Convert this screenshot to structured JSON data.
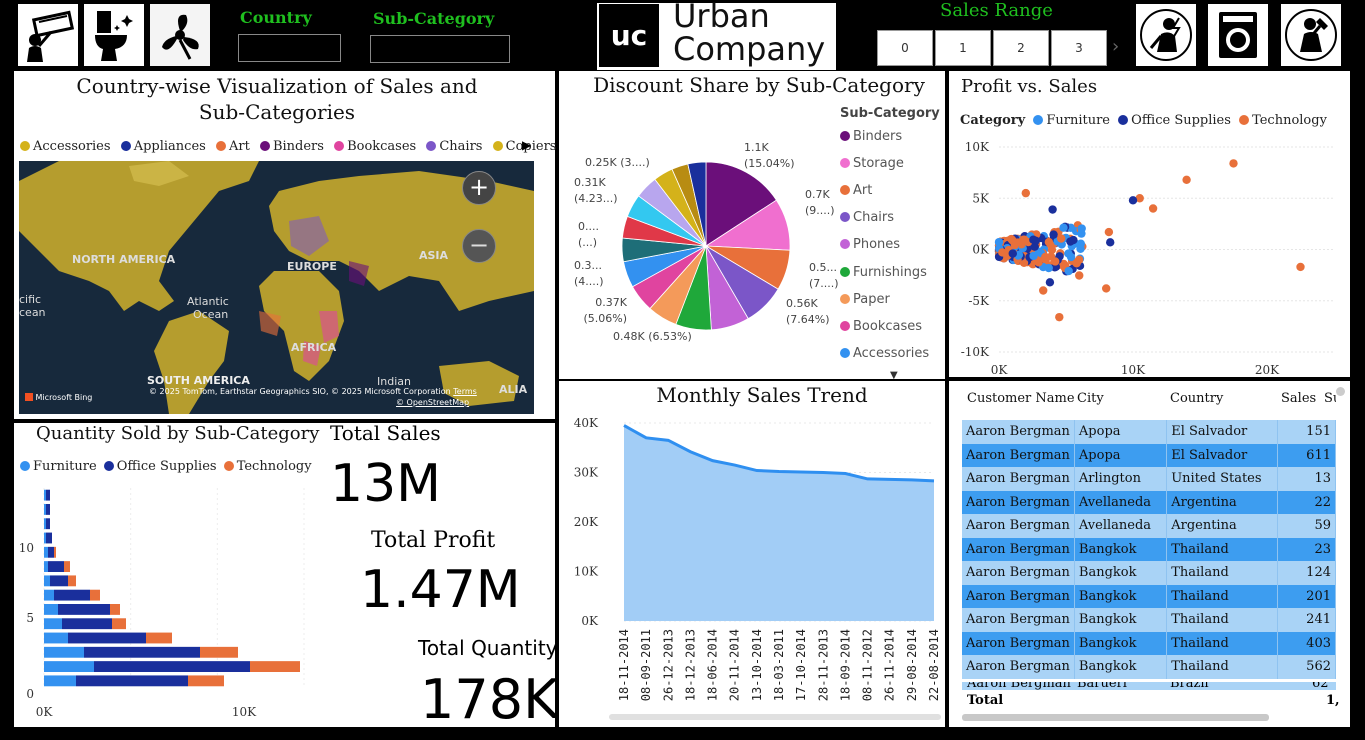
{
  "header": {
    "country_label": "Country",
    "subcategory_label": "Sub-Category",
    "sales_range_label": "Sales Range",
    "sales_range_buttons": [
      "0",
      "1",
      "2",
      "3"
    ],
    "logo": {
      "mark": "uc",
      "line1": "Urban",
      "line2": "Company"
    },
    "icons_left": [
      "ac-repair-icon",
      "toilet-cleaning-icon",
      "fan-icon"
    ],
    "icons_right": [
      "electrician-icon",
      "washing-machine-icon",
      "plumber-icon"
    ]
  },
  "map_panel": {
    "title_line1": "Country-wise Visualization of Sales and",
    "title_line2": "Sub-Categories",
    "legend": [
      {
        "name": "Accessories",
        "color": "#d4b21a"
      },
      {
        "name": "Appliances",
        "color": "#1a2f9c"
      },
      {
        "name": "Art",
        "color": "#e8703a"
      },
      {
        "name": "Binders",
        "color": "#6b0f7a"
      },
      {
        "name": "Bookcases",
        "color": "#e0449f"
      },
      {
        "name": "Chairs",
        "color": "#7b56c8"
      },
      {
        "name": "Copiers",
        "color": "#d4b21a"
      }
    ],
    "labels": {
      "north_america": "NORTH AMERICA",
      "europe": "EUROPE",
      "asia": "ASIA",
      "africa": "AFRICA",
      "south_america": "SOUTH AMERICA",
      "atlantic": "Atlantic",
      "ocean": "Ocean",
      "pacific": "cific",
      "pacific2": "cean",
      "indian": "Indian",
      "alia": "ALIA"
    },
    "attribution": "© 2025 TomTom, Earthstar Geographics SIO, © 2025 Microsoft Corporation",
    "terms": "Terms",
    "osm": "© OpenStreetMap",
    "bing": "Microsoft Bing",
    "zoom_in": "+",
    "zoom_out": "−"
  },
  "pie_panel": {
    "title": "Discount Share by Sub-Category",
    "legend_title": "Sub-Category",
    "legend": [
      {
        "name": "Binders",
        "color": "#6b0f7a"
      },
      {
        "name": "Storage",
        "color": "#f06fcf"
      },
      {
        "name": "Art",
        "color": "#e8703a"
      },
      {
        "name": "Chairs",
        "color": "#7b56c8"
      },
      {
        "name": "Phones",
        "color": "#c262d6"
      },
      {
        "name": "Furnishings",
        "color": "#1fa83a"
      },
      {
        "name": "Paper",
        "color": "#f49a5a"
      },
      {
        "name": "Bookcases",
        "color": "#e0449f"
      },
      {
        "name": "Accessories",
        "color": "#3391f0"
      }
    ],
    "labels": [
      {
        "l1": "1.1K",
        "l2": "(15.04%)"
      },
      {
        "l1": "0.7K",
        "l2": "(9....)"
      },
      {
        "l1": "0.5...",
        "l2": "(7....)"
      },
      {
        "l1": "0.56K",
        "l2": "(7.64%)"
      },
      {
        "l1": "0.48K (6.53%)",
        "l2": ""
      },
      {
        "l1": "0.37K",
        "l2": "(5.06%)"
      },
      {
        "l1": "0.3...",
        "l2": "(4....)"
      },
      {
        "l1": "0....",
        "l2": "(...)"
      },
      {
        "l1": "0.31K",
        "l2": "(4.23...)"
      },
      {
        "l1": "0.25K (3....)",
        "l2": ""
      }
    ]
  },
  "chart_data": [
    {
      "type": "pie",
      "title": "Discount Share by Sub-Category",
      "slices": [
        {
          "name": "Binders",
          "value": 15.04,
          "color": "#6b0f7a"
        },
        {
          "name": "Storage",
          "value": 9.5,
          "color": "#f06fcf"
        },
        {
          "name": "Art",
          "value": 7.4,
          "color": "#e8703a"
        },
        {
          "name": "Chairs",
          "value": 7.64,
          "color": "#7b56c8"
        },
        {
          "name": "Phones",
          "value": 7.0,
          "color": "#c262d6"
        },
        {
          "name": "Furnishings",
          "value": 6.53,
          "color": "#1fa83a"
        },
        {
          "name": "Paper",
          "value": 5.5,
          "color": "#f49a5a"
        },
        {
          "name": "Bookcases",
          "value": 5.06,
          "color": "#e0449f"
        },
        {
          "name": "Accessories",
          "value": 4.8,
          "color": "#3391f0"
        },
        {
          "name": "Teal",
          "value": 4.3,
          "color": "#1e6e78"
        },
        {
          "name": "Red",
          "value": 4.0,
          "color": "#e03848"
        },
        {
          "name": "Cyan",
          "value": 4.23,
          "color": "#33c8f0"
        },
        {
          "name": "Lavender",
          "value": 4.2,
          "color": "#b8a6ee"
        },
        {
          "name": "Gold",
          "value": 3.6,
          "color": "#d4b21a"
        },
        {
          "name": "Olive",
          "value": 3.0,
          "color": "#b88c12"
        },
        {
          "name": "Navy",
          "value": 3.3,
          "color": "#1a2f9c"
        }
      ]
    },
    {
      "type": "scatter",
      "title": "Profit vs. Sales",
      "legend_title": "Category",
      "series": [
        {
          "name": "Furniture",
          "color": "#3391f0"
        },
        {
          "name": "Office Supplies",
          "color": "#1a2f9c"
        },
        {
          "name": "Technology",
          "color": "#e8703a"
        }
      ],
      "xlim": [
        0,
        25000
      ],
      "ylim": [
        -10000,
        10000
      ],
      "xticks": [
        "0K",
        "10K",
        "20K"
      ],
      "yticks": [
        "10K",
        "5K",
        "0K",
        "-5K",
        "-10K"
      ],
      "outliers": [
        {
          "series": "Technology",
          "x": 17500,
          "y": 8400
        },
        {
          "series": "Technology",
          "x": 22500,
          "y": -1700
        },
        {
          "series": "Technology",
          "x": 14000,
          "y": 6800
        },
        {
          "series": "Technology",
          "x": 10500,
          "y": 5000
        },
        {
          "series": "Technology",
          "x": 11500,
          "y": 4000
        },
        {
          "series": "Technology",
          "x": 8000,
          "y": -3800
        },
        {
          "series": "Technology",
          "x": 4500,
          "y": -6600
        },
        {
          "series": "Technology",
          "x": 8200,
          "y": 1700
        },
        {
          "series": "Office Supplies",
          "x": 10000,
          "y": 4800
        },
        {
          "series": "Office Supplies",
          "x": 8300,
          "y": 700
        },
        {
          "series": "Office Supplies",
          "x": 3800,
          "y": -3200
        },
        {
          "series": "Office Supplies",
          "x": 4000,
          "y": 3900
        },
        {
          "series": "Furniture",
          "x": 5200,
          "y": -2100
        },
        {
          "series": "Technology",
          "x": 2000,
          "y": 5500
        },
        {
          "series": "Technology",
          "x": 3300,
          "y": -4000
        }
      ]
    },
    {
      "type": "bar",
      "title": "Quantity Sold by Sub-Category",
      "orientation": "horizontal-stacked",
      "series": [
        {
          "name": "Furniture",
          "color": "#3391f0"
        },
        {
          "name": "Office Supplies",
          "color": "#1a2f9c"
        },
        {
          "name": "Technology",
          "color": "#e8703a"
        }
      ],
      "rows": [
        [
          0.1,
          0.2,
          0
        ],
        [
          0.1,
          0.2,
          0
        ],
        [
          0.1,
          0.2,
          0
        ],
        [
          0.1,
          0.3,
          0
        ],
        [
          0.2,
          0.3,
          0.1
        ],
        [
          0.2,
          0.8,
          0.3
        ],
        [
          0.3,
          0.9,
          0.4
        ],
        [
          0.5,
          1.8,
          0.5
        ],
        [
          0.7,
          2.6,
          0.5
        ],
        [
          0.9,
          2.5,
          0.7
        ],
        [
          1.2,
          3.9,
          1.3
        ],
        [
          2.0,
          5.8,
          1.9
        ],
        [
          2.5,
          7.8,
          2.5
        ],
        [
          1.6,
          5.6,
          1.8
        ]
      ],
      "xlim": [
        0,
        13
      ],
      "xticks": [
        "0K",
        "10K"
      ],
      "yticks": [
        "10",
        "5",
        "0"
      ]
    },
    {
      "type": "area",
      "title": "Monthly Sales Trend",
      "x": [
        "18-11-2014",
        "08-09-2011",
        "26-12-2013",
        "18-12-2013",
        "18-06-2014",
        "20-11-2014",
        "13-10-2014",
        "18-03-2011",
        "17-10-2014",
        "28-11-2013",
        "18-09-2014",
        "08-11-2012",
        "26-11-2014",
        "29-08-2014",
        "22-08-2014"
      ],
      "values": [
        39500,
        37000,
        36500,
        34200,
        32400,
        31500,
        30400,
        30200,
        30100,
        30000,
        29800,
        28700,
        28600,
        28500,
        28300
      ],
      "ylim": [
        0,
        40000
      ],
      "yticks": [
        "40K",
        "30K",
        "20K",
        "10K",
        "0K"
      ]
    }
  ],
  "kpis": {
    "panel_title": "Quantity Sold by Sub-Category",
    "legend": [
      "Furniture",
      "Office Supplies",
      "Technology"
    ],
    "total_sales_label": "Total Sales",
    "total_sales": "13M",
    "total_profit_label": "Total Profit",
    "total_profit": "1.47M",
    "total_quantity_label": "Total Quantity",
    "total_quantity": "178K"
  },
  "trend_panel": {
    "title": "Monthly Sales Trend"
  },
  "scatter_panel": {
    "title": "Profit vs. Sales",
    "legend_title": "Category"
  },
  "table": {
    "columns": [
      "Customer Name",
      "City",
      "Country",
      "Sales",
      "Su"
    ],
    "rows": [
      [
        "Aaron Bergman",
        "Apopa",
        "El Salvador",
        "151"
      ],
      [
        "Aaron Bergman",
        "Apopa",
        "El Salvador",
        "611"
      ],
      [
        "Aaron Bergman",
        "Arlington",
        "United States",
        "13"
      ],
      [
        "Aaron Bergman",
        "Avellaneda",
        "Argentina",
        "22"
      ],
      [
        "Aaron Bergman",
        "Avellaneda",
        "Argentina",
        "59"
      ],
      [
        "Aaron Bergman",
        "Bangkok",
        "Thailand",
        "23"
      ],
      [
        "Aaron Bergman",
        "Bangkok",
        "Thailand",
        "124"
      ],
      [
        "Aaron Bergman",
        "Bangkok",
        "Thailand",
        "201"
      ],
      [
        "Aaron Bergman",
        "Bangkok",
        "Thailand",
        "241"
      ],
      [
        "Aaron Bergman",
        "Bangkok",
        "Thailand",
        "403"
      ],
      [
        "Aaron Bergman",
        "Bangkok",
        "Thailand",
        "562"
      ]
    ],
    "partial_row": [
      "Aaron Bergman",
      "Barueri",
      "Brazil",
      "62"
    ],
    "total_label": "Total",
    "total_value": "1,"
  }
}
